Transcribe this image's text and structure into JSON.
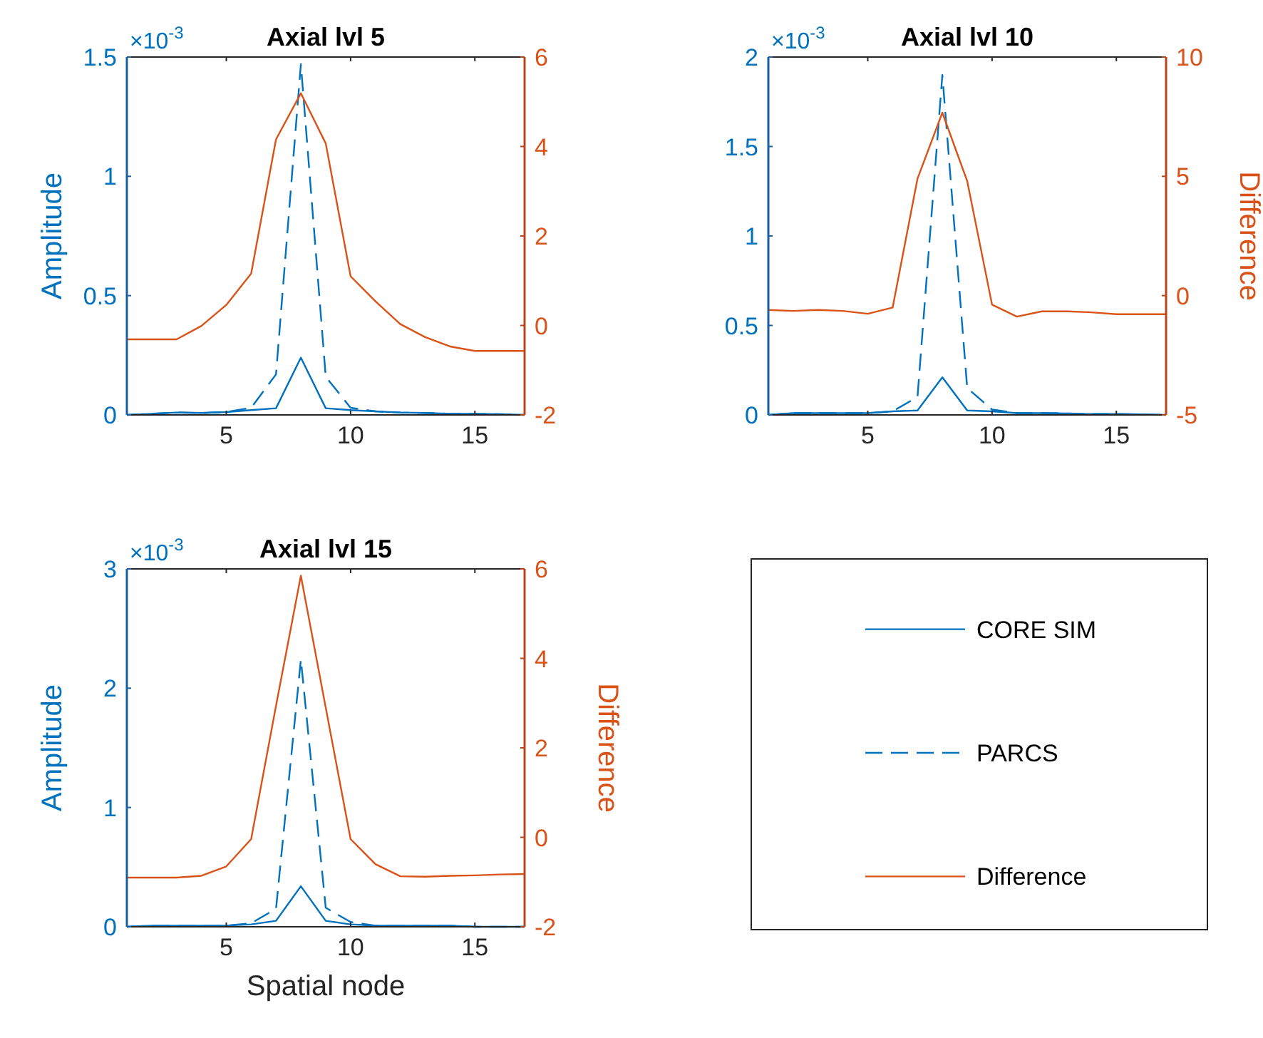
{
  "chart_data": [
    {
      "type": "line",
      "title": "Axial lvl 5",
      "ylabel": "Amplitude",
      "annotations": [
        "×10$^{-3}$"
      ],
      "x": [
        1,
        2,
        3,
        4,
        5,
        6,
        7,
        8,
        9,
        10,
        11,
        12,
        13,
        14,
        15,
        16,
        17
      ],
      "xlim": [
        1,
        17
      ],
      "xticks": [
        5,
        10,
        15
      ],
      "ylim": [
        0,
        1.5
      ],
      "yticks": [
        0,
        0.5,
        1,
        1.5
      ],
      "y2lim": [
        -2,
        6
      ],
      "y2ticks": [
        -2,
        0,
        2,
        4,
        6
      ],
      "series": [
        {
          "color": "#0072bd",
          "line_style": "solid",
          "values": [
            0,
            0.005,
            0.01,
            0.008,
            0.012,
            0.02,
            0.028,
            0.24,
            0.028,
            0.02,
            0.015,
            0.01,
            0.008,
            0.005,
            0.005,
            0.003,
            0
          ]
        },
        {
          "color": "#0072bd",
          "line_style": "dashed",
          "values": [
            0,
            0.005,
            0.01,
            0.008,
            0.012,
            0.03,
            0.17,
            1.47,
            0.16,
            0.03,
            0.015,
            0.01,
            0.008,
            0.005,
            0.005,
            0.003,
            0
          ]
        },
        {
          "color": "#d95319",
          "line_style": "solid",
          "axis": "y2",
          "values": [
            -0.31,
            -0.31,
            -0.31,
            -0.01,
            0.46,
            1.16,
            4.16,
            5.19,
            4.07,
            1.1,
            0.54,
            0.03,
            -0.26,
            -0.47,
            -0.57,
            -0.57,
            -0.57
          ]
        }
      ]
    },
    {
      "type": "line",
      "title": "Axial lvl 10",
      "y2label": "Difference",
      "annotations": [
        "×10$^{-3}$"
      ],
      "x": [
        1,
        2,
        3,
        4,
        5,
        6,
        7,
        8,
        9,
        10,
        11,
        12,
        13,
        14,
        15,
        16,
        17
      ],
      "xlim": [
        1,
        17
      ],
      "xticks": [
        5,
        10,
        15
      ],
      "ylim": [
        0,
        2
      ],
      "yticks": [
        0,
        0.5,
        1,
        1.5,
        2
      ],
      "y2lim": [
        -5,
        10
      ],
      "y2ticks": [
        -5,
        0,
        5,
        10
      ],
      "series": [
        {
          "color": "#0072bd",
          "line_style": "solid",
          "values": [
            0,
            0.01,
            0.01,
            0.01,
            0.01,
            0.02,
            0.025,
            0.21,
            0.025,
            0.02,
            0.01,
            0.01,
            0.008,
            0.005,
            0.005,
            0.003,
            0
          ]
        },
        {
          "color": "#0072bd",
          "line_style": "dashed",
          "values": [
            0,
            0.01,
            0.01,
            0.01,
            0.01,
            0.02,
            0.1,
            1.9,
            0.15,
            0.03,
            0.01,
            0.01,
            0.008,
            0.005,
            0.005,
            0.003,
            0
          ]
        },
        {
          "color": "#d95319",
          "line_style": "solid",
          "axis": "y2",
          "values": [
            -0.6,
            -0.64,
            -0.6,
            -0.64,
            -0.76,
            -0.5,
            4.9,
            7.67,
            4.8,
            -0.38,
            -0.88,
            -0.66,
            -0.66,
            -0.7,
            -0.78,
            -0.78,
            -0.78
          ]
        }
      ]
    },
    {
      "type": "line",
      "title": "Axial lvl 15",
      "xlabel": "Spatial node",
      "ylabel": "Amplitude",
      "y2label": "Difference",
      "annotations": [
        "×10$^{-3}$"
      ],
      "legend": "right",
      "x": [
        1,
        2,
        3,
        4,
        5,
        6,
        7,
        8,
        9,
        10,
        11,
        12,
        13,
        14,
        15,
        16,
        17
      ],
      "xlim": [
        1,
        17
      ],
      "xticks": [
        5,
        10,
        15
      ],
      "ylim": [
        0,
        3
      ],
      "yticks": [
        0,
        1,
        2,
        3
      ],
      "y2lim": [
        -2,
        6
      ],
      "y2ticks": [
        -2,
        0,
        2,
        4,
        6
      ],
      "series": [
        {
          "name": "CORE SIM",
          "color": "#0072bd",
          "line_style": "solid",
          "values": [
            0,
            0.01,
            0.01,
            0.01,
            0.01,
            0.02,
            0.05,
            0.34,
            0.05,
            0.02,
            0.01,
            0.01,
            0.01,
            0.01,
            0,
            0,
            0
          ]
        },
        {
          "name": "PARCS",
          "color": "#0072bd",
          "line_style": "dashed",
          "values": [
            0,
            0.01,
            0.01,
            0.01,
            0.01,
            0.03,
            0.15,
            2.24,
            0.16,
            0.04,
            0.01,
            0.01,
            0.01,
            0.01,
            0,
            0,
            0
          ]
        },
        {
          "name": "Difference",
          "color": "#d95319",
          "line_style": "solid",
          "axis": "y2",
          "values": [
            -0.9,
            -0.9,
            -0.9,
            -0.86,
            -0.65,
            -0.04,
            2.94,
            5.85,
            2.9,
            -0.04,
            -0.6,
            -0.87,
            -0.88,
            -0.86,
            -0.85,
            -0.83,
            -0.82
          ]
        }
      ]
    }
  ]
}
